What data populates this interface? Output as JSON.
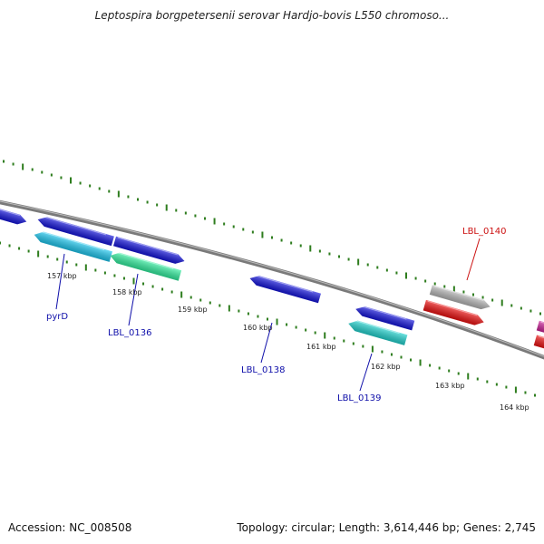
{
  "header": {
    "title": "Leptospira borgpetersenii serovar Hardjo-bovis L550 chromoso..."
  },
  "footer": {
    "accession": "Accession: NC_008508",
    "summary": "Topology: circular; Length: 3,614,446 bp; Genes: 2,745"
  },
  "map": {
    "backbone_color": "#7a7a7a",
    "tick_color": "#2e7d1e",
    "scale_labels": [
      "157 kbp",
      "158 kbp",
      "159 kbp",
      "160 kbp",
      "161 kbp",
      "162 kbp",
      "163 kbp",
      "164 kbp"
    ],
    "genes": [
      {
        "id": "g1",
        "color": "#1515dd",
        "strand": "+"
      },
      {
        "id": "g2",
        "color": "#1515dd",
        "strand": "-"
      },
      {
        "id": "g3",
        "color": "#1515dd",
        "strand": "+"
      },
      {
        "id": "pyrD",
        "color": "#1ec8f0",
        "strand": "-"
      },
      {
        "id": "LBL_0136",
        "color": "#33f0a0",
        "strand": "-"
      },
      {
        "id": "LBL_0138",
        "color": "#1515dd",
        "strand": "-"
      },
      {
        "id": "g7",
        "color": "#1515dd",
        "strand": "-"
      },
      {
        "id": "LBL_0139",
        "color": "#22d4d0",
        "strand": "-"
      },
      {
        "id": "LBL_0140",
        "color": "#b8b8b8",
        "strand": "+"
      },
      {
        "id": "g10",
        "color": "#ee1111",
        "strand": "+"
      },
      {
        "id": "g11",
        "color": "#cc2299",
        "strand": "+"
      },
      {
        "id": "g12",
        "color": "#ee1111",
        "strand": "+"
      }
    ],
    "gene_labels": [
      {
        "text": "pyrD",
        "color": "#1010aa"
      },
      {
        "text": "LBL_0136",
        "color": "#1010aa"
      },
      {
        "text": "LBL_0138",
        "color": "#1010aa"
      },
      {
        "text": "LBL_0139",
        "color": "#1010aa"
      },
      {
        "text": "LBL_0140",
        "color": "#cc1111"
      }
    ]
  }
}
